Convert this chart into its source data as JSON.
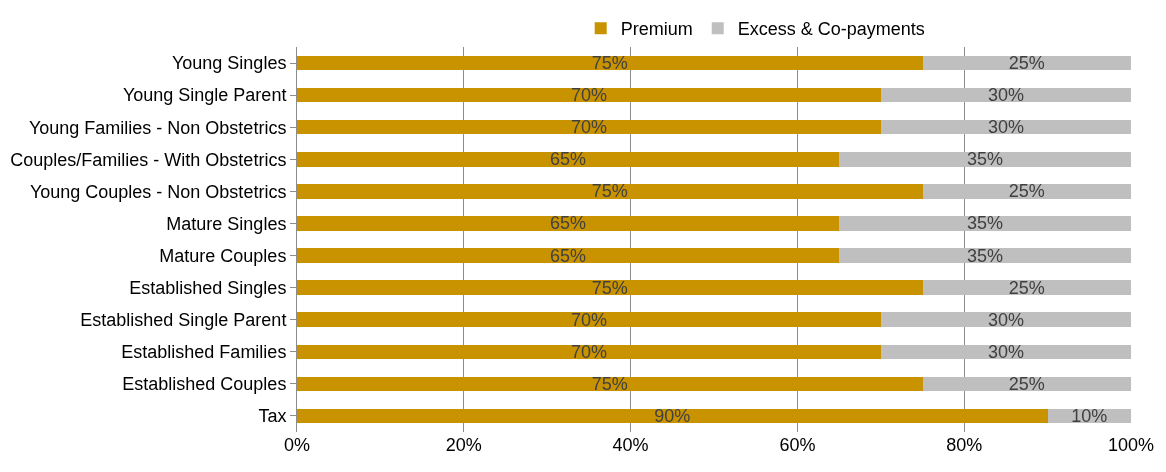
{
  "chart_data": {
    "type": "bar",
    "orientation": "horizontal",
    "stacked": true,
    "categories": [
      "Young Singles",
      "Young Single Parent",
      "Young Families - Non Obstetrics",
      "Couples/Families - With Obstetrics",
      "Young Couples - Non Obstetrics",
      "Mature Singles",
      "Mature Couples",
      "Established Singles",
      "Established Single Parent",
      "Established Families",
      "Established Couples",
      "Tax"
    ],
    "series": [
      {
        "name": "Premium",
        "color": "#c99300",
        "values": [
          75,
          70,
          70,
          65,
          75,
          65,
          65,
          75,
          70,
          70,
          75,
          90
        ],
        "value_labels": [
          "75%",
          "70%",
          "70%",
          "65%",
          "75%",
          "65%",
          "65%",
          "75%",
          "70%",
          "70%",
          "75%",
          "90%"
        ]
      },
      {
        "name": "Excess & Co-payments",
        "color": "#bfbfbf",
        "values": [
          25,
          30,
          30,
          35,
          25,
          35,
          35,
          25,
          30,
          30,
          25,
          10
        ],
        "value_labels": [
          "25%",
          "30%",
          "30%",
          "35%",
          "25%",
          "35%",
          "35%",
          "25%",
          "30%",
          "30%",
          "25%",
          "10%"
        ]
      }
    ],
    "xlim": [
      0,
      100
    ],
    "xticks": [
      {
        "value": 0,
        "label": "0%"
      },
      {
        "value": 20,
        "label": "20%"
      },
      {
        "value": 40,
        "label": "40%"
      },
      {
        "value": 60,
        "label": "60%"
      },
      {
        "value": 80,
        "label": "80%"
      },
      {
        "value": 100,
        "label": "100%"
      }
    ],
    "grid": "x",
    "legend": "top"
  }
}
